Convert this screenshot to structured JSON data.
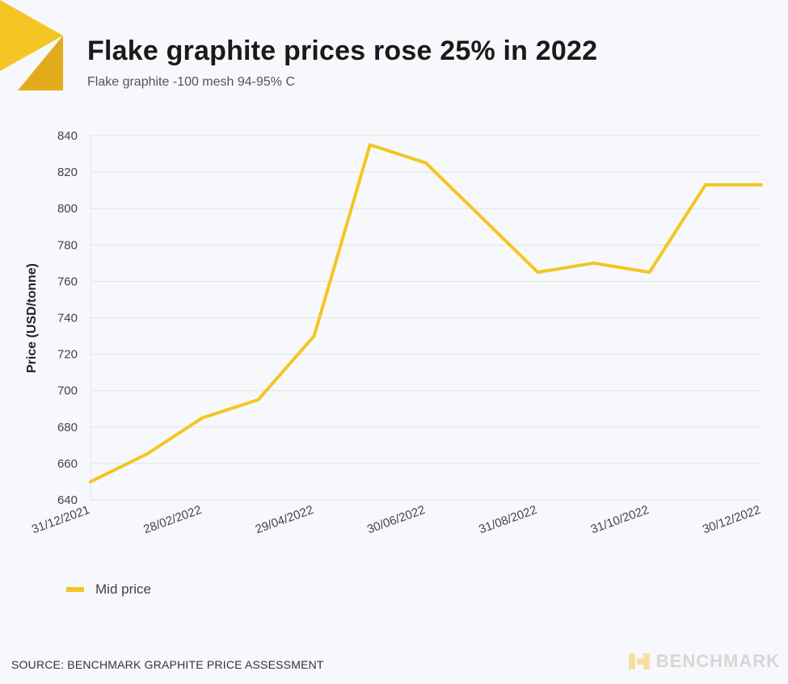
{
  "header": {
    "title": "Flake graphite prices rose 25% in 2022",
    "subtitle": "Flake graphite -100 mesh 94-95% C"
  },
  "colors": {
    "accent": "#f3c623",
    "accent_dark": "#e0a70f",
    "grid": "#e0e3ea",
    "background": "#f7f8fb"
  },
  "chart_data": {
    "type": "line",
    "title": "Flake graphite prices rose 25% in 2022",
    "subtitle": "Flake graphite -100 mesh 94-95% C",
    "xlabel": "",
    "ylabel": "Price (USD/tonne)",
    "ylim": [
      640,
      840
    ],
    "yticks": [
      640,
      660,
      680,
      700,
      720,
      740,
      760,
      780,
      800,
      820,
      840
    ],
    "xrange_index": [
      0,
      12
    ],
    "xtick_positions": [
      0,
      2,
      4,
      6,
      8,
      10,
      12
    ],
    "xtick_labels": [
      "31/12/2021",
      "28/02/2022",
      "29/04/2022",
      "30/06/2022",
      "31/08/2022",
      "31/10/2022",
      "30/12/2022"
    ],
    "grid": true,
    "series": [
      {
        "name": "Mid price",
        "x": [
          0,
          1,
          2,
          3,
          4,
          5,
          6,
          7,
          8,
          9,
          10,
          11,
          12
        ],
        "values": [
          650,
          665,
          685,
          695,
          730,
          835,
          825,
          795,
          765,
          770,
          765,
          813,
          813
        ]
      }
    ],
    "legend": "bottom-left"
  },
  "legend": {
    "label": "Mid price"
  },
  "footer": {
    "source": "SOURCE: BENCHMARK GRAPHITE PRICE ASSESSMENT",
    "brand": "BENCHMARK"
  }
}
